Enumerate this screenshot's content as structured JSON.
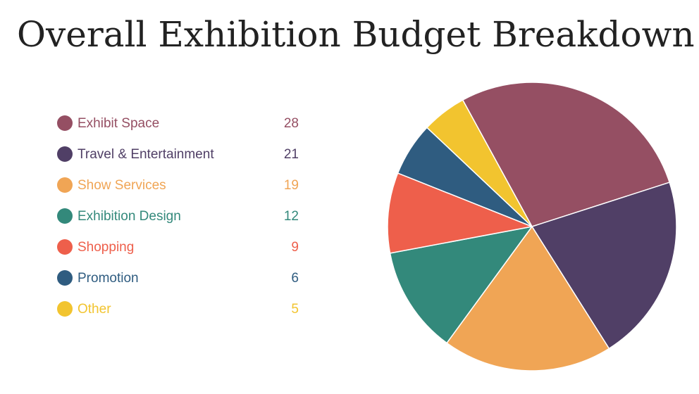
{
  "chart_data": {
    "type": "pie",
    "title": "Overall Exhibition Budget Breakdown",
    "slices": [
      {
        "label": "Exhibit Space",
        "value": 28,
        "color": "#954F63"
      },
      {
        "label": "Travel & Entertainment",
        "value": 21,
        "color": "#503F66"
      },
      {
        "label": "Show Services",
        "value": 19,
        "color": "#F0A555"
      },
      {
        "label": "Exhibition Design",
        "value": 12,
        "color": "#33897B"
      },
      {
        "label": "Shopping",
        "value": 9,
        "color": "#EE5F4B"
      },
      {
        "label": "Promotion",
        "value": 6,
        "color": "#2F5C80"
      },
      {
        "label": "Other",
        "value": 5,
        "color": "#F2C42F"
      }
    ],
    "legend_position": "left"
  }
}
